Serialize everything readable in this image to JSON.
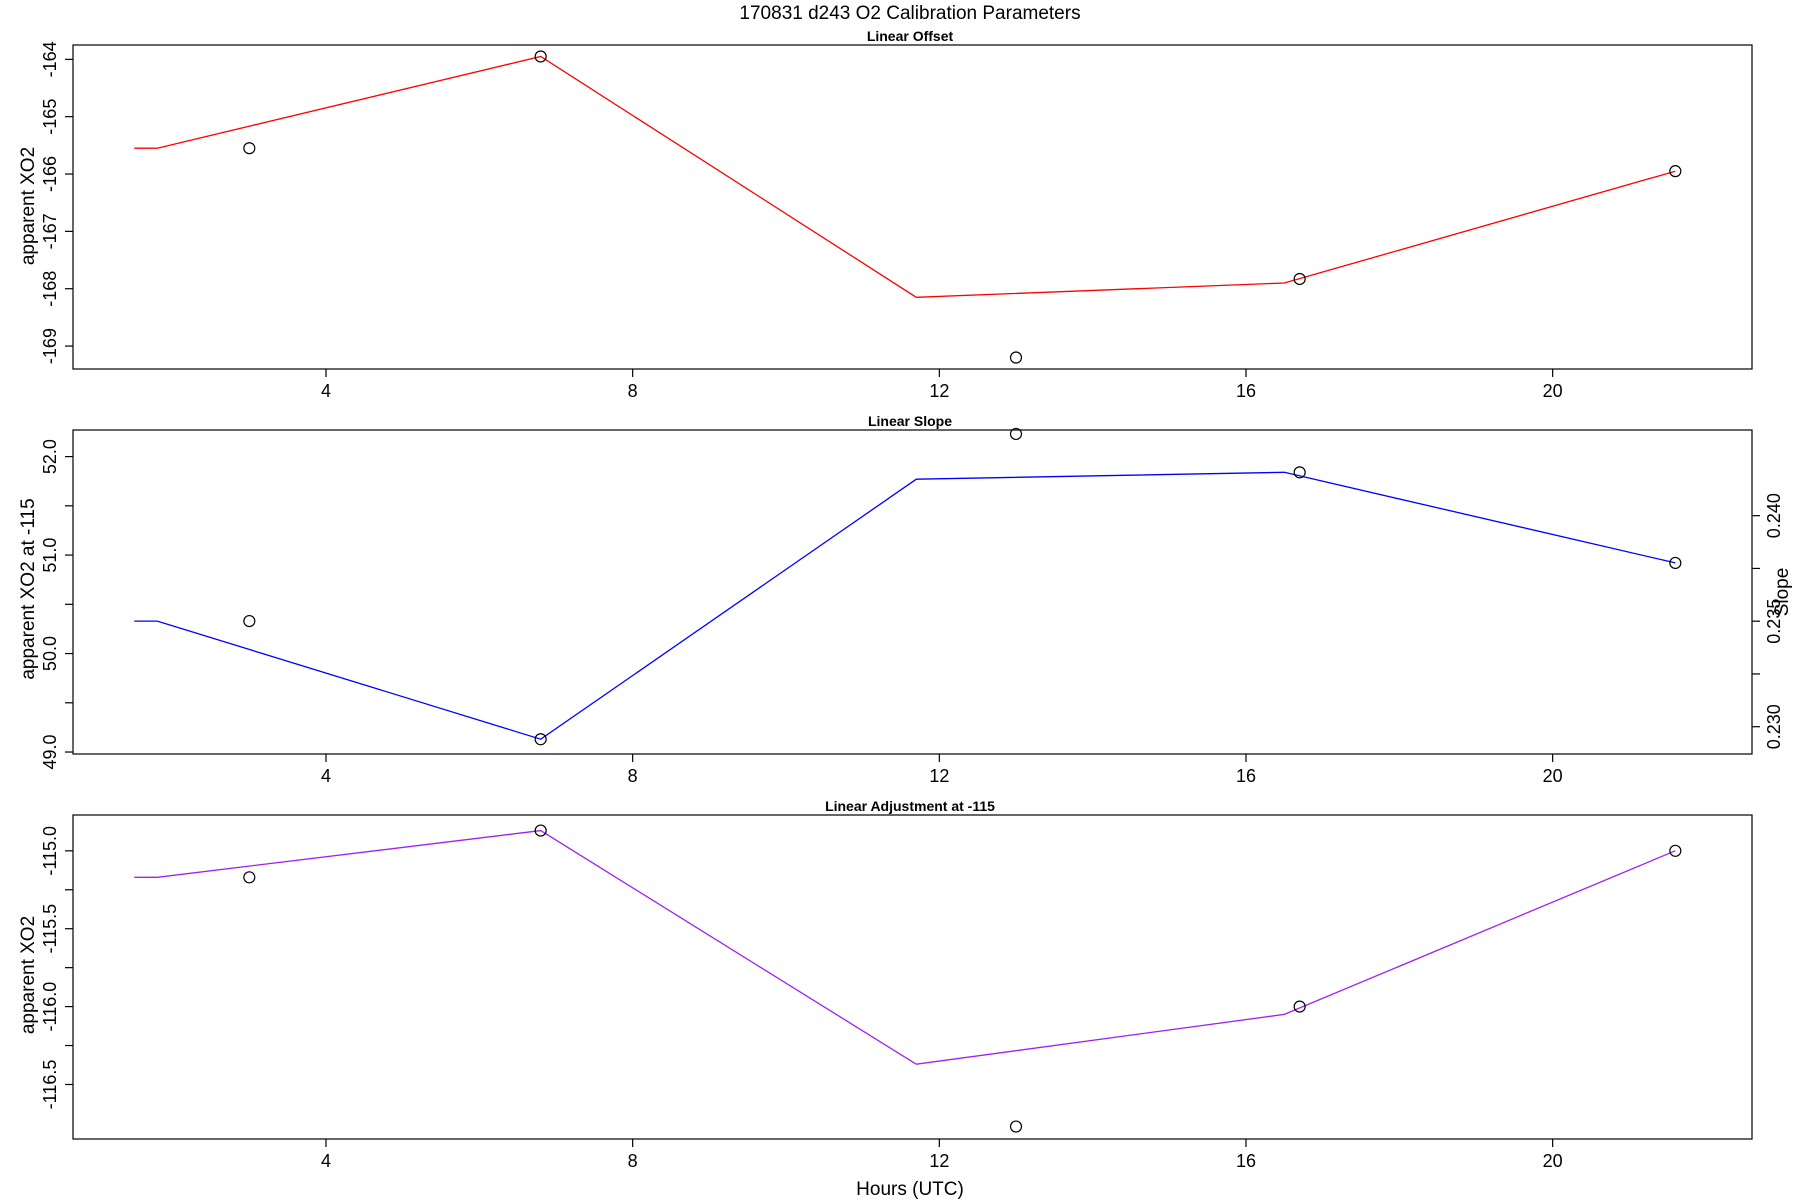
{
  "figure": {
    "title": "170831   d243   O2 Calibration Parameters",
    "xlabel": "Hours (UTC)"
  },
  "chart_data": [
    {
      "type": "line",
      "title": "Linear Offset",
      "xlabel": "",
      "ylabel": "apparent XO2",
      "xlim": [
        0.7,
        22.6
      ],
      "ylim": [
        -169.4,
        -163.75
      ],
      "xticks": [
        4,
        8,
        12,
        16,
        20
      ],
      "yticks": [
        -169,
        -168,
        -167,
        -166,
        -165,
        -164
      ],
      "ytick_labels": [
        "-169",
        "-168",
        "-167",
        "-166",
        "-165",
        "-164"
      ],
      "line_color": "#ff0000",
      "line": {
        "x": [
          1.5,
          1.8,
          6.8,
          11.7,
          16.5,
          21.6
        ],
        "y": [
          -165.55,
          -165.55,
          -163.95,
          -168.15,
          -167.9,
          -165.95
        ]
      },
      "points": {
        "x": [
          3.0,
          6.8,
          13.0,
          16.7,
          21.6
        ],
        "y": [
          -165.55,
          -163.95,
          -169.2,
          -167.83,
          -165.95
        ]
      }
    },
    {
      "type": "line",
      "title": "Linear Slope",
      "xlabel": "",
      "ylabel": "apparent XO2 at -115",
      "ylabel_right": "Slope",
      "xlim": [
        0.7,
        22.6
      ],
      "ylim": [
        48.98,
        52.27
      ],
      "xticks": [
        4,
        8,
        12,
        16,
        20
      ],
      "yticks": [
        49.0,
        50.0,
        51.0,
        52.0
      ],
      "ytick_labels": [
        "49.0",
        "50.0",
        "51.0",
        "52.0"
      ],
      "yticks_minor": [
        49.5,
        50.5,
        51.5
      ],
      "right_axis": {
        "ticks": [
          0.23,
          0.235,
          0.24
        ],
        "tick_labels": [
          "0.230",
          "0.235",
          "0.240"
        ],
        "minor_ticks": [
          0.2325,
          0.2375
        ],
        "mapping": {
          "left": [
            49.0,
            52.0
          ],
          "right": [
            0.2288,
            0.2428
          ]
        }
      },
      "line_color": "#0000ff",
      "line": {
        "x": [
          1.5,
          1.8,
          6.8,
          11.7,
          16.5,
          21.6
        ],
        "y": [
          50.33,
          50.33,
          49.13,
          51.77,
          51.84,
          50.92
        ]
      },
      "points": {
        "x": [
          3.0,
          6.8,
          13.0,
          16.7,
          21.6
        ],
        "y": [
          50.33,
          49.13,
          52.23,
          51.84,
          50.92
        ]
      }
    },
    {
      "type": "line",
      "title": "Linear Adjustment at -115",
      "xlabel": "",
      "ylabel": "apparent XO2",
      "xlim": [
        0.7,
        22.6
      ],
      "ylim": [
        -116.85,
        -114.77
      ],
      "xticks": [
        4,
        8,
        12,
        16,
        20
      ],
      "yticks": [
        -116.5,
        -116.0,
        -115.5,
        -115.0
      ],
      "ytick_labels": [
        "-116.5",
        "-116.0",
        "-115.5",
        "-115.0"
      ],
      "yticks_minor": [
        -116.25,
        -115.75,
        -115.25
      ],
      "line_color": "#a020f0",
      "line": {
        "x": [
          1.5,
          1.8,
          6.8,
          11.7,
          16.5,
          21.6
        ],
        "y": [
          -115.17,
          -115.17,
          -114.87,
          -116.37,
          -116.05,
          -115.0
        ]
      },
      "points": {
        "x": [
          3.0,
          6.8,
          13.0,
          16.7,
          21.6
        ],
        "y": [
          -115.17,
          -114.87,
          -116.77,
          -116.0,
          -115.0
        ]
      }
    }
  ]
}
